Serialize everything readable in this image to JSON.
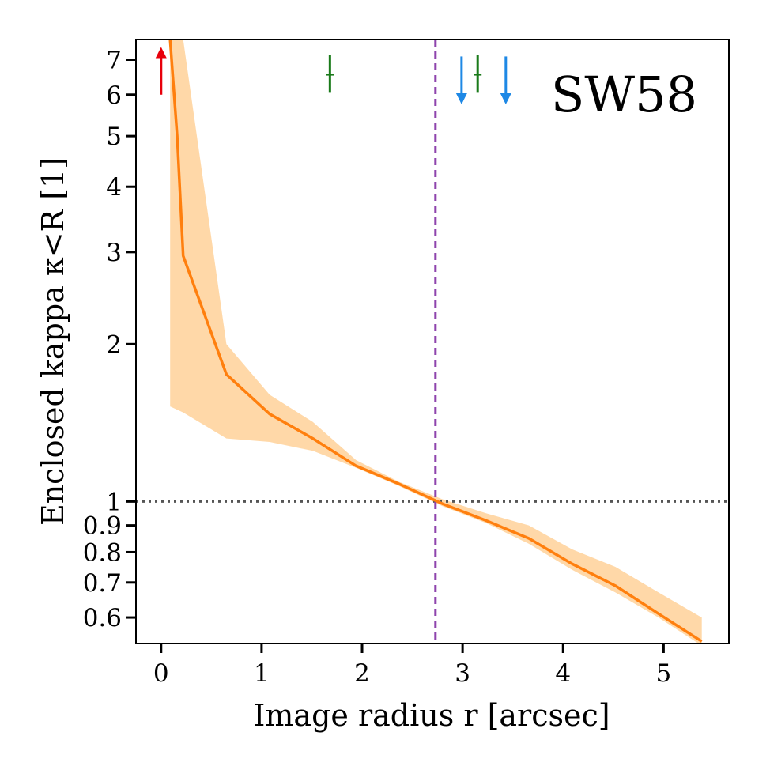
{
  "chart_data": {
    "type": "line",
    "title": "",
    "annotation_label": "SW58",
    "xlabel": "Image radius r [arcsec]",
    "ylabel": "Enclosed kappa κ<R [1]",
    "xlim": [
      -0.25,
      5.65
    ],
    "ylim": [
      0.535,
      7.65
    ],
    "yscale": "log",
    "grid": false,
    "x_ticks": [
      0,
      1,
      2,
      3,
      4,
      5
    ],
    "x_tick_labels": [
      "0",
      "1",
      "2",
      "3",
      "4",
      "5"
    ],
    "y_ticks": [
      0.6,
      0.7,
      0.8,
      0.9,
      1,
      2,
      3,
      4,
      5,
      6,
      7
    ],
    "y_tick_labels": [
      "0.6",
      "0.7",
      "0.8",
      "0.9",
      "1",
      "2",
      "3",
      "4",
      "5",
      "6",
      "7"
    ],
    "series": [
      {
        "color": "#ff7f0e",
        "x": [
          0.09,
          0.16,
          0.22,
          0.65,
          1.08,
          1.51,
          1.94,
          2.37,
          2.8,
          3.23,
          3.66,
          4.09,
          4.52,
          4.95,
          5.38
        ],
        "y": [
          7.65,
          5.0,
          2.95,
          1.75,
          1.47,
          1.32,
          1.17,
          1.08,
          0.99,
          0.92,
          0.85,
          0.76,
          0.69,
          0.61,
          0.54
        ]
      }
    ],
    "band": {
      "color": "#ffd8a8",
      "x": [
        0.09,
        0.22,
        0.65,
        1.08,
        1.51,
        1.94,
        2.37,
        2.8,
        3.23,
        3.66,
        4.09,
        4.52,
        4.95,
        5.38
      ],
      "lower": [
        1.52,
        1.48,
        1.32,
        1.3,
        1.25,
        1.16,
        1.07,
        0.98,
        0.91,
        0.83,
        0.74,
        0.67,
        0.6,
        0.53
      ],
      "upper": [
        7.65,
        7.65,
        2.0,
        1.6,
        1.42,
        1.2,
        1.09,
        1.01,
        0.95,
        0.9,
        0.81,
        0.75,
        0.67,
        0.6
      ]
    },
    "reference_lines": [
      {
        "orientation": "horizontal",
        "value": 1,
        "color": "#555555",
        "style": "dotted"
      },
      {
        "orientation": "vertical",
        "value": 2.73,
        "color": "#8e44ad",
        "style": "dashed"
      }
    ],
    "markers": [
      {
        "kind": "arrow-up",
        "x": 0.0,
        "y_base": 6.0,
        "y_tip": 7.4,
        "color": "#e8000b"
      },
      {
        "kind": "tick",
        "x": 1.68,
        "y_low": 6.05,
        "y_high": 7.15,
        "y_mid": 6.55,
        "color": "#1a7a1a"
      },
      {
        "kind": "arrow-down",
        "x": 2.99,
        "y_base": 7.1,
        "y_tip": 5.75,
        "color": "#1e88e5"
      },
      {
        "kind": "tick",
        "x": 3.15,
        "y_low": 6.05,
        "y_high": 7.15,
        "y_mid": 6.55,
        "color": "#1a7a1a"
      },
      {
        "kind": "arrow-down",
        "x": 3.43,
        "y_base": 7.1,
        "y_tip": 5.75,
        "color": "#1e88e5"
      }
    ]
  }
}
